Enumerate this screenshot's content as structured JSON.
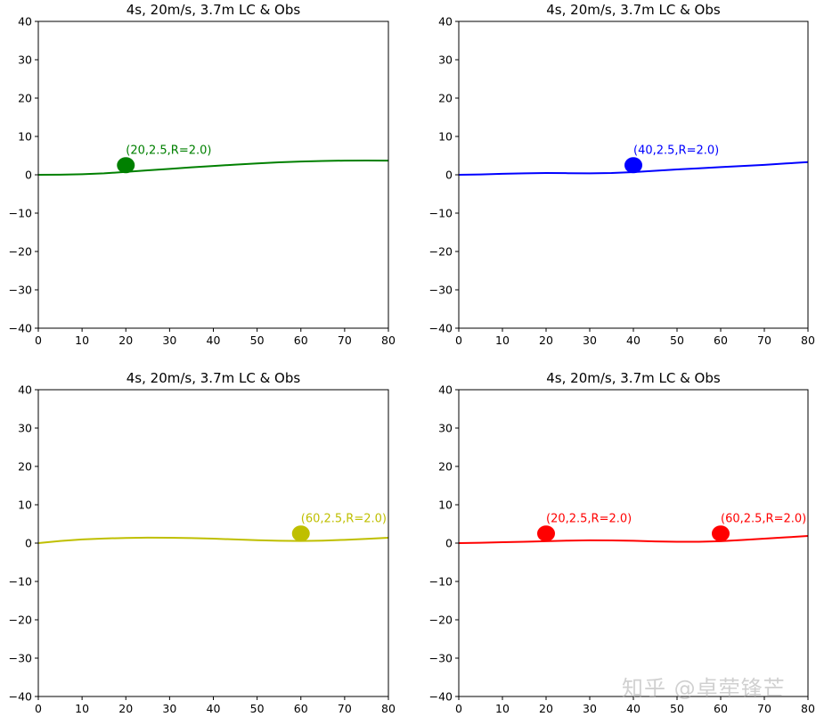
{
  "watermark": "知乎 @卓荦锋芒",
  "chart_data": [
    {
      "type": "line",
      "title": "4s, 20m/s, 3.7m LC & Obs",
      "xlim": [
        0,
        80
      ],
      "ylim": [
        -40,
        40
      ],
      "xticks": [
        0,
        10,
        20,
        30,
        40,
        50,
        60,
        70,
        80
      ],
      "yticks": [
        -40,
        -30,
        -20,
        -10,
        0,
        10,
        20,
        30,
        40
      ],
      "color": "#008000",
      "series": [
        {
          "name": "trajectory",
          "x": [
            0,
            5,
            10,
            15,
            20,
            25,
            30,
            35,
            40,
            45,
            50,
            55,
            60,
            65,
            70,
            75,
            80
          ],
          "y": [
            0,
            0.03,
            0.15,
            0.38,
            0.75,
            1.15,
            1.55,
            1.95,
            2.3,
            2.65,
            2.95,
            3.25,
            3.45,
            3.6,
            3.7,
            3.72,
            3.7
          ]
        }
      ],
      "obstacles": [
        {
          "x": 20,
          "y": 2.5,
          "label": "(20,2.5,R=2.0)"
        }
      ]
    },
    {
      "type": "line",
      "title": "4s, 20m/s, 3.7m LC & Obs",
      "xlim": [
        0,
        80
      ],
      "ylim": [
        -40,
        40
      ],
      "xticks": [
        0,
        10,
        20,
        30,
        40,
        50,
        60,
        70,
        80
      ],
      "yticks": [
        -40,
        -30,
        -20,
        -10,
        0,
        10,
        20,
        30,
        40
      ],
      "color": "#0000ff",
      "series": [
        {
          "name": "trajectory",
          "x": [
            0,
            5,
            10,
            15,
            20,
            25,
            30,
            35,
            40,
            45,
            50,
            55,
            60,
            65,
            70,
            75,
            80
          ],
          "y": [
            0,
            0.1,
            0.25,
            0.38,
            0.45,
            0.42,
            0.38,
            0.45,
            0.7,
            1.05,
            1.4,
            1.7,
            2.0,
            2.3,
            2.6,
            2.95,
            3.3
          ]
        }
      ],
      "obstacles": [
        {
          "x": 40,
          "y": 2.5,
          "label": "(40,2.5,R=2.0)"
        }
      ]
    },
    {
      "type": "line",
      "title": "4s, 20m/s, 3.7m LC & Obs",
      "xlim": [
        0,
        80
      ],
      "ylim": [
        -40,
        40
      ],
      "xticks": [
        0,
        10,
        20,
        30,
        40,
        50,
        60,
        70,
        80
      ],
      "yticks": [
        -40,
        -30,
        -20,
        -10,
        0,
        10,
        20,
        30,
        40
      ],
      "color": "#bfbf00",
      "series": [
        {
          "name": "trajectory",
          "x": [
            0,
            5,
            10,
            15,
            20,
            25,
            30,
            35,
            40,
            45,
            50,
            55,
            60,
            65,
            70,
            75,
            80
          ],
          "y": [
            0,
            0.55,
            0.95,
            1.2,
            1.35,
            1.42,
            1.4,
            1.3,
            1.15,
            0.95,
            0.75,
            0.6,
            0.55,
            0.65,
            0.85,
            1.1,
            1.4
          ]
        }
      ],
      "obstacles": [
        {
          "x": 60,
          "y": 2.5,
          "label": "(60,2.5,R=2.0)"
        }
      ]
    },
    {
      "type": "line",
      "title": "4s, 20m/s, 3.7m LC & Obs",
      "xlim": [
        0,
        80
      ],
      "ylim": [
        -40,
        40
      ],
      "xticks": [
        0,
        10,
        20,
        30,
        40,
        50,
        60,
        70,
        80
      ],
      "yticks": [
        -40,
        -30,
        -20,
        -10,
        0,
        10,
        20,
        30,
        40
      ],
      "color": "#ff0000",
      "series": [
        {
          "name": "trajectory",
          "x": [
            0,
            5,
            10,
            15,
            20,
            25,
            30,
            35,
            40,
            45,
            50,
            55,
            60,
            65,
            70,
            75,
            80
          ],
          "y": [
            0,
            0.1,
            0.22,
            0.35,
            0.5,
            0.65,
            0.72,
            0.7,
            0.6,
            0.45,
            0.35,
            0.35,
            0.5,
            0.8,
            1.15,
            1.5,
            1.85
          ]
        }
      ],
      "obstacles": [
        {
          "x": 20,
          "y": 2.5,
          "label": "(20,2.5,R=2.0)"
        },
        {
          "x": 60,
          "y": 2.5,
          "label": "(60,2.5,R=2.0)"
        }
      ]
    }
  ]
}
